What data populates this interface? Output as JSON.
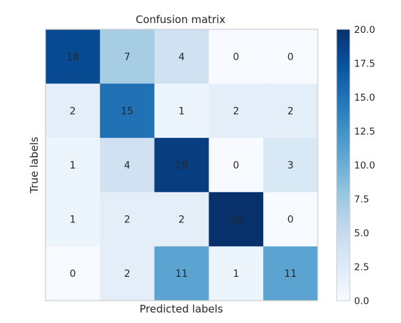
{
  "chart_data": {
    "type": "heatmap",
    "title": "Confusion matrix",
    "xlabel": "Predicted labels",
    "ylabel": "True labels",
    "matrix": [
      [
        18,
        7,
        4,
        0,
        0
      ],
      [
        2,
        15,
        1,
        2,
        2
      ],
      [
        1,
        4,
        19,
        0,
        3
      ],
      [
        1,
        2,
        2,
        20,
        0
      ],
      [
        0,
        2,
        11,
        1,
        11
      ]
    ],
    "colormap": "Blues",
    "vmin": 0,
    "vmax": 20,
    "colorbar_ticks": [
      "0.0",
      "2.5",
      "5.0",
      "7.5",
      "10.0",
      "12.5",
      "15.0",
      "17.5",
      "20.0"
    ],
    "grid": false
  }
}
